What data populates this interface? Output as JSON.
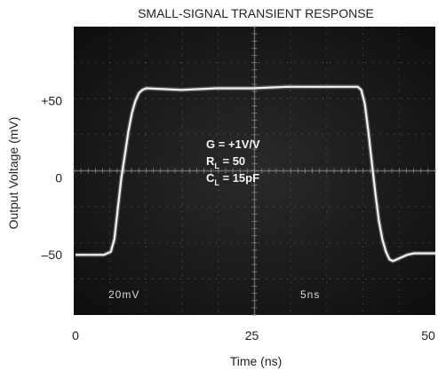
{
  "chart_data": {
    "type": "line",
    "title": "SMALL-SIGNAL TRANSIENT RESPONSE",
    "x_label": "Time (ns)",
    "y_label": "Output Voltage (mV)",
    "xlim": [
      -0.25,
      51
    ],
    "ylim": [
      -89,
      98
    ],
    "xticks": [
      0,
      25,
      50
    ],
    "yticks": [
      {
        "value": 50,
        "label": "+50"
      },
      0,
      {
        "value": -50,
        "label": "–50"
      }
    ],
    "series": [
      {
        "color": "#f2f2f2",
        "x": [
          0,
          4,
          5,
          5.5,
          6,
          6.5,
          7,
          7.5,
          8,
          8.5,
          9,
          9.5,
          10,
          15,
          20,
          25,
          30,
          35,
          40,
          40.5,
          41,
          41.5,
          42,
          42.5,
          43,
          43.5,
          44,
          44.5,
          45,
          46,
          47,
          48,
          50,
          51
        ],
        "values": [
          -50,
          -50,
          -48,
          -40,
          -20,
          0,
          15,
          30,
          42,
          50,
          55,
          57,
          58,
          57,
          58,
          58,
          59,
          59,
          59,
          57,
          48,
          30,
          10,
          -10,
          -28,
          -40,
          -48,
          -53,
          -54,
          -52,
          -50,
          -49,
          -49,
          -49
        ]
      }
    ],
    "annotations": [
      {
        "text": "G = +1V/V"
      },
      {
        "text": "R",
        "sub": "L",
        "after": " = 50"
      },
      {
        "text": "C",
        "sub": "L",
        "after": " = 15pF"
      }
    ],
    "scope_labels": [
      "20mV",
      "5ns"
    ]
  }
}
